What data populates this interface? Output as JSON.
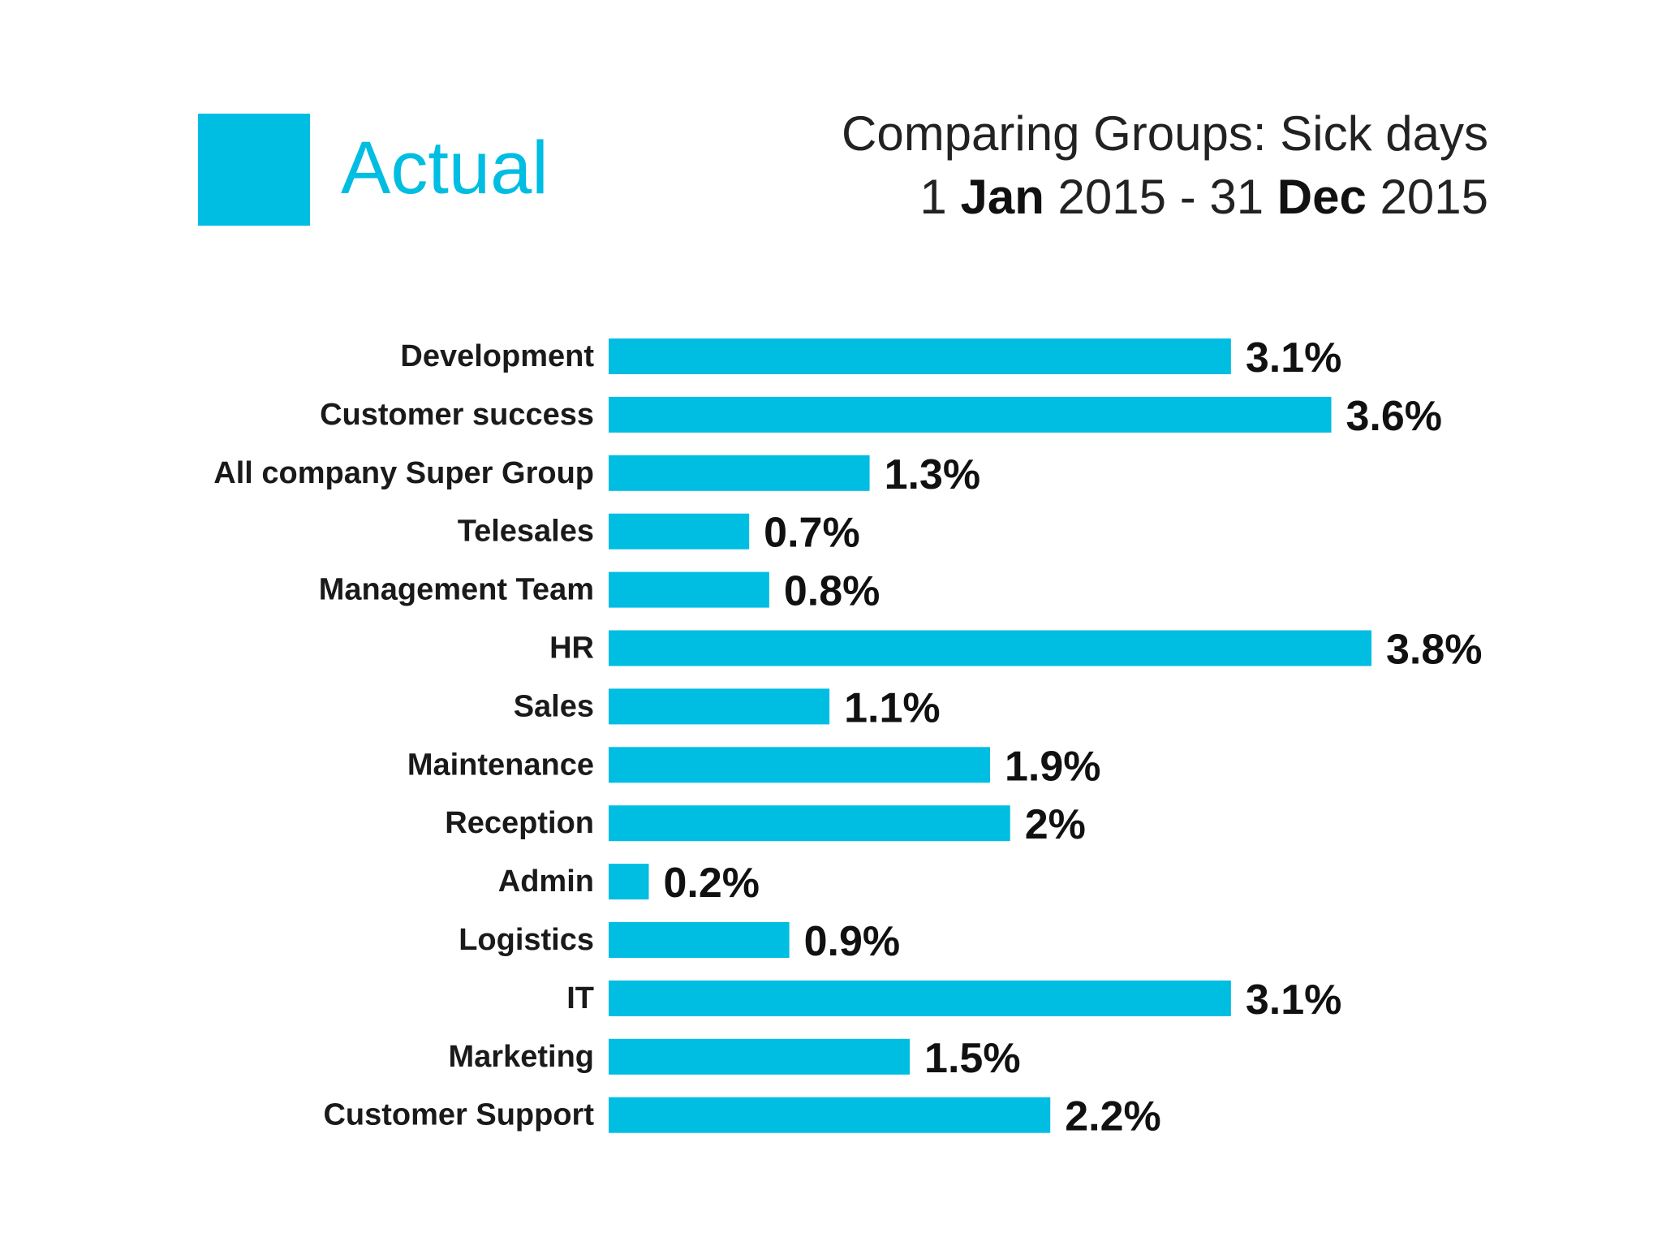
{
  "legend": {
    "label": "Actual",
    "color": "#00bde2"
  },
  "title": {
    "line1": "Comparing Groups: Sick days",
    "start_day": "1",
    "start_month": "Jan",
    "start_year": "2015",
    "separator": "-",
    "end_day": "31",
    "end_month": "Dec",
    "end_year": "2015"
  },
  "chart_data": {
    "type": "bar",
    "orientation": "horizontal",
    "categories": [
      "Development",
      "Customer success",
      "All company Super Group",
      "Telesales",
      "Management Team",
      "HR",
      "Sales",
      "Maintenance",
      "Reception",
      "Admin",
      "Logistics",
      "IT",
      "Marketing",
      "Customer Support"
    ],
    "values": [
      3.1,
      3.6,
      1.3,
      0.7,
      0.8,
      3.8,
      1.1,
      1.9,
      2,
      0.2,
      0.9,
      3.1,
      1.5,
      2.2
    ],
    "value_labels": [
      "3.1%",
      "3.6%",
      "1.3%",
      "0.7%",
      "0.8%",
      "3.8%",
      "1.1%",
      "1.9%",
      "2%",
      "0.2%",
      "0.9%",
      "3.1%",
      "1.5%",
      "2.2%"
    ],
    "series": [
      {
        "values": [
          3.1,
          3.6,
          1.3,
          0.7,
          0.8,
          3.8,
          1.1,
          1.9,
          2,
          0.2,
          0.9,
          3.1,
          1.5,
          2.2
        ]
      }
    ],
    "bar_color": "#00bde2",
    "xlim": [
      0,
      3.8
    ],
    "grid": false,
    "axes_visible": false,
    "legend_position": "top-left"
  }
}
